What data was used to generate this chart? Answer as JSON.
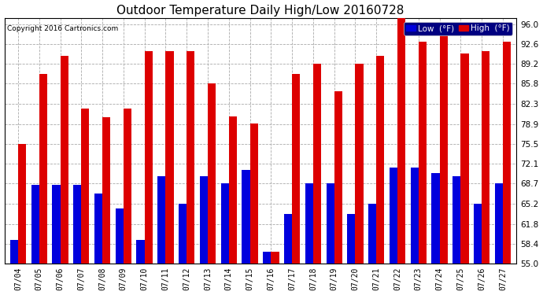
{
  "title": "Outdoor Temperature Daily High/Low 20160728",
  "copyright": "Copyright 2016 Cartronics.com",
  "legend_low": "Low  (°F)",
  "legend_high": "High  (°F)",
  "dates": [
    "07/04",
    "07/05",
    "07/06",
    "07/07",
    "07/08",
    "07/09",
    "07/10",
    "07/11",
    "07/12",
    "07/13",
    "07/14",
    "07/15",
    "07/16",
    "07/17",
    "07/18",
    "07/19",
    "07/20",
    "07/21",
    "07/22",
    "07/23",
    "07/24",
    "07/25",
    "07/26",
    "07/27"
  ],
  "high": [
    75.5,
    87.5,
    90.5,
    81.5,
    80.0,
    81.5,
    91.4,
    91.4,
    91.4,
    85.8,
    80.2,
    79.0,
    57.0,
    87.5,
    89.2,
    84.5,
    89.2,
    90.5,
    97.0,
    93.0,
    96.0,
    91.0,
    91.4,
    93.0
  ],
  "low": [
    59.0,
    68.5,
    68.5,
    68.5,
    67.0,
    64.5,
    59.0,
    70.0,
    65.2,
    70.0,
    68.7,
    71.0,
    57.0,
    63.5,
    68.7,
    68.7,
    63.5,
    65.2,
    71.5,
    71.5,
    70.5,
    70.0,
    65.2,
    68.7
  ],
  "ybase": 55.0,
  "ylim": [
    55.0,
    97.0
  ],
  "yticks": [
    55.0,
    58.4,
    61.8,
    65.2,
    68.7,
    72.1,
    75.5,
    78.9,
    82.3,
    85.8,
    89.2,
    92.6,
    96.0
  ],
  "low_color": "#0000dd",
  "high_color": "#dd0000",
  "bg_color": "#ffffff",
  "grid_color": "#aaaaaa",
  "title_fontsize": 11,
  "bar_width": 0.38,
  "legend_bg": "#000080",
  "legend_text": "#ffffff"
}
